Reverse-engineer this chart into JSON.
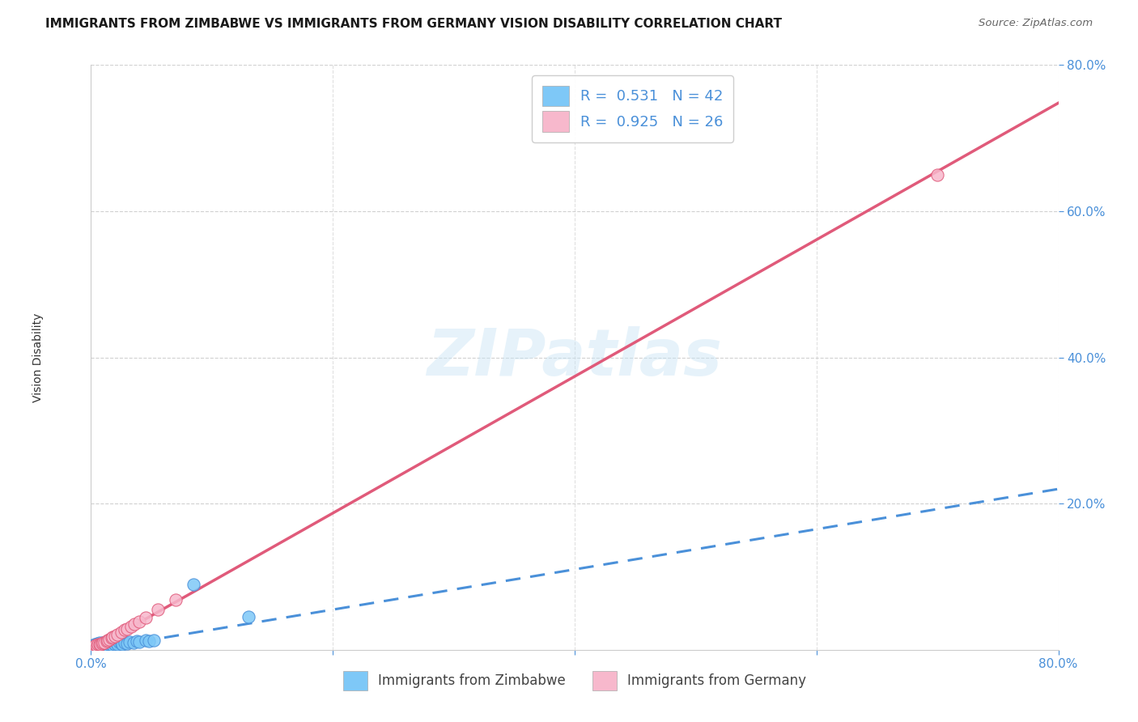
{
  "title": "IMMIGRANTS FROM ZIMBABWE VS IMMIGRANTS FROM GERMANY VISION DISABILITY CORRELATION CHART",
  "source": "Source: ZipAtlas.com",
  "ylabel": "Vision Disability",
  "xlim": [
    0.0,
    0.8
  ],
  "ylim": [
    0.0,
    0.8
  ],
  "xticks": [
    0.0,
    0.2,
    0.4,
    0.6,
    0.8
  ],
  "yticks": [
    0.2,
    0.4,
    0.6,
    0.8
  ],
  "watermark": "ZIPatlas",
  "zimbabwe_color": "#7ec8f7",
  "zimbabwe_color_dark": "#4a90d9",
  "germany_color": "#f7b8cc",
  "germany_color_dark": "#e05a7a",
  "title_fontsize": 11,
  "tick_fontsize": 11,
  "tick_color": "#4a90d9",
  "background_color": "#ffffff",
  "grid_color": "#cccccc",
  "zimbabwe_reg_slope": 0.275,
  "zimbabwe_reg_intercept": 0.0,
  "germany_reg_slope": 0.935,
  "germany_reg_intercept": 0.0,
  "zim_scatter_x": [
    0.001,
    0.002,
    0.003,
    0.003,
    0.004,
    0.005,
    0.005,
    0.006,
    0.007,
    0.007,
    0.008,
    0.008,
    0.009,
    0.01,
    0.01,
    0.011,
    0.012,
    0.012,
    0.013,
    0.014,
    0.015,
    0.016,
    0.017,
    0.018,
    0.019,
    0.02,
    0.021,
    0.022,
    0.023,
    0.025,
    0.026,
    0.028,
    0.03,
    0.032,
    0.035,
    0.038,
    0.04,
    0.045,
    0.048,
    0.052,
    0.13,
    0.085
  ],
  "zim_scatter_y": [
    0.004,
    0.006,
    0.005,
    0.008,
    0.004,
    0.006,
    0.009,
    0.005,
    0.007,
    0.01,
    0.006,
    0.008,
    0.005,
    0.007,
    0.01,
    0.006,
    0.008,
    0.011,
    0.006,
    0.009,
    0.007,
    0.01,
    0.008,
    0.006,
    0.009,
    0.007,
    0.01,
    0.008,
    0.011,
    0.009,
    0.008,
    0.01,
    0.009,
    0.011,
    0.01,
    0.012,
    0.011,
    0.013,
    0.012,
    0.013,
    0.045,
    0.09
  ],
  "ger_scatter_x": [
    0.002,
    0.004,
    0.005,
    0.006,
    0.007,
    0.008,
    0.009,
    0.01,
    0.011,
    0.013,
    0.014,
    0.015,
    0.017,
    0.018,
    0.02,
    0.022,
    0.025,
    0.028,
    0.03,
    0.033,
    0.036,
    0.04,
    0.045,
    0.055,
    0.07,
    0.7
  ],
  "ger_scatter_y": [
    0.004,
    0.006,
    0.005,
    0.007,
    0.008,
    0.007,
    0.009,
    0.01,
    0.01,
    0.012,
    0.013,
    0.014,
    0.016,
    0.017,
    0.019,
    0.021,
    0.024,
    0.027,
    0.029,
    0.032,
    0.035,
    0.039,
    0.044,
    0.055,
    0.068,
    0.65
  ]
}
